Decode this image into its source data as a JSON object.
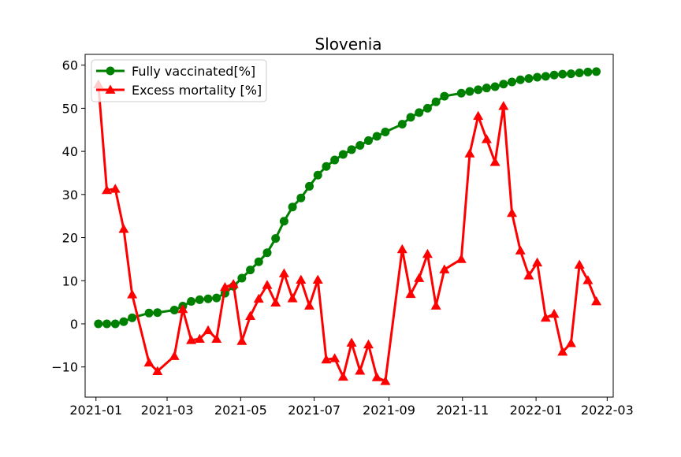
{
  "chart_data": {
    "type": "line",
    "title": "Slovenia",
    "xlabel": "",
    "ylabel": "",
    "x_axis": "date",
    "xlim": [
      "2020-12-23",
      "2022-03-06"
    ],
    "ylim": [
      -17,
      62.5
    ],
    "x_ticks": [
      "2021-01-01",
      "2021-03-01",
      "2021-05-01",
      "2021-07-01",
      "2021-09-01",
      "2021-11-01",
      "2022-01-01",
      "2022-03-01"
    ],
    "x_tick_labels": [
      "2021-01",
      "2021-03",
      "2021-05",
      "2021-07",
      "2021-09",
      "2021-11",
      "2022-01",
      "2022-03"
    ],
    "y_ticks": [
      -10,
      0,
      10,
      20,
      30,
      40,
      50,
      60
    ],
    "y_tick_labels": [
      "−10",
      "0",
      "10",
      "20",
      "30",
      "40",
      "50",
      "60"
    ],
    "grid": false,
    "legend_position": "upper-left",
    "series": [
      {
        "name": "Fully vaccinated[%]",
        "color": "#008000",
        "marker": "circle",
        "points": [
          [
            "2021-01-03",
            0.0
          ],
          [
            "2021-01-10",
            0.0
          ],
          [
            "2021-01-17",
            0.0
          ],
          [
            "2021-01-24",
            0.5
          ],
          [
            "2021-01-31",
            1.4
          ],
          [
            "2021-02-14",
            2.5
          ],
          [
            "2021-02-21",
            2.6
          ],
          [
            "2021-03-07",
            3.2
          ],
          [
            "2021-03-14",
            4.1
          ],
          [
            "2021-03-21",
            5.2
          ],
          [
            "2021-03-28",
            5.6
          ],
          [
            "2021-04-04",
            5.8
          ],
          [
            "2021-04-11",
            6.0
          ],
          [
            "2021-04-18",
            7.1
          ],
          [
            "2021-04-25",
            8.7
          ],
          [
            "2021-05-02",
            10.6
          ],
          [
            "2021-05-09",
            12.5
          ],
          [
            "2021-05-16",
            14.4
          ],
          [
            "2021-05-23",
            16.5
          ],
          [
            "2021-05-30",
            19.8
          ],
          [
            "2021-06-06",
            23.8
          ],
          [
            "2021-06-13",
            27.1
          ],
          [
            "2021-06-20",
            29.2
          ],
          [
            "2021-06-27",
            31.9
          ],
          [
            "2021-07-04",
            34.5
          ],
          [
            "2021-07-11",
            36.5
          ],
          [
            "2021-07-18",
            38.0
          ],
          [
            "2021-07-25",
            39.3
          ],
          [
            "2021-08-01",
            40.4
          ],
          [
            "2021-08-08",
            41.4
          ],
          [
            "2021-08-15",
            42.5
          ],
          [
            "2021-08-22",
            43.5
          ],
          [
            "2021-08-29",
            44.5
          ],
          [
            "2021-09-12",
            46.3
          ],
          [
            "2021-09-19",
            47.9
          ],
          [
            "2021-09-26",
            49.0
          ],
          [
            "2021-10-03",
            50.0
          ],
          [
            "2021-10-10",
            51.5
          ],
          [
            "2021-10-17",
            52.8
          ],
          [
            "2021-10-31",
            53.5
          ],
          [
            "2021-11-07",
            53.9
          ],
          [
            "2021-11-14",
            54.3
          ],
          [
            "2021-11-21",
            54.7
          ],
          [
            "2021-11-28",
            55.0
          ],
          [
            "2021-12-05",
            55.6
          ],
          [
            "2021-12-12",
            56.1
          ],
          [
            "2021-12-19",
            56.6
          ],
          [
            "2021-12-26",
            56.9
          ],
          [
            "2022-01-02",
            57.2
          ],
          [
            "2022-01-09",
            57.4
          ],
          [
            "2022-01-16",
            57.7
          ],
          [
            "2022-01-23",
            57.9
          ],
          [
            "2022-01-30",
            58.0
          ],
          [
            "2022-02-06",
            58.2
          ],
          [
            "2022-02-13",
            58.4
          ],
          [
            "2022-02-20",
            58.5
          ]
        ]
      },
      {
        "name": "Excess mortality [%]",
        "color": "#ff0000",
        "marker": "triangle",
        "points": [
          [
            "2021-01-03",
            55.5
          ],
          [
            "2021-01-10",
            31.0
          ],
          [
            "2021-01-17",
            31.3
          ],
          [
            "2021-01-24",
            22.0
          ],
          [
            "2021-01-31",
            6.8
          ],
          [
            "2021-02-14",
            -9.0
          ],
          [
            "2021-02-21",
            -11.0
          ],
          [
            "2021-03-07",
            -7.5
          ],
          [
            "2021-03-14",
            3.4
          ],
          [
            "2021-03-21",
            -3.8
          ],
          [
            "2021-03-28",
            -3.5
          ],
          [
            "2021-04-04",
            -1.5
          ],
          [
            "2021-04-11",
            -3.5
          ],
          [
            "2021-04-18",
            8.5
          ],
          [
            "2021-04-25",
            9.2
          ],
          [
            "2021-05-02",
            -4.0
          ],
          [
            "2021-05-09",
            1.8
          ],
          [
            "2021-05-16",
            5.8
          ],
          [
            "2021-05-23",
            9.0
          ],
          [
            "2021-05-30",
            4.9
          ],
          [
            "2021-06-06",
            11.7
          ],
          [
            "2021-06-13",
            5.9
          ],
          [
            "2021-06-20",
            10.2
          ],
          [
            "2021-06-27",
            4.2
          ],
          [
            "2021-07-04",
            10.2
          ],
          [
            "2021-07-11",
            -8.3
          ],
          [
            "2021-07-18",
            -8.0
          ],
          [
            "2021-07-25",
            -12.3
          ],
          [
            "2021-08-01",
            -4.4
          ],
          [
            "2021-08-08",
            -10.9
          ],
          [
            "2021-08-15",
            -4.8
          ],
          [
            "2021-08-22",
            -12.4
          ],
          [
            "2021-08-29",
            -13.3
          ],
          [
            "2021-09-12",
            17.3
          ],
          [
            "2021-09-19",
            6.9
          ],
          [
            "2021-09-26",
            10.6
          ],
          [
            "2021-10-03",
            16.2
          ],
          [
            "2021-10-10",
            4.2
          ],
          [
            "2021-10-17",
            12.6
          ],
          [
            "2021-10-31",
            15.0
          ],
          [
            "2021-11-07",
            39.5
          ],
          [
            "2021-11-14",
            48.2
          ],
          [
            "2021-11-21",
            42.8
          ],
          [
            "2021-11-28",
            37.5
          ],
          [
            "2021-12-05",
            50.5
          ],
          [
            "2021-12-12",
            25.7
          ],
          [
            "2021-12-19",
            17.0
          ],
          [
            "2021-12-26",
            11.2
          ],
          [
            "2022-01-02",
            14.2
          ],
          [
            "2022-01-09",
            1.4
          ],
          [
            "2022-01-16",
            2.3
          ],
          [
            "2022-01-23",
            -6.5
          ],
          [
            "2022-01-30",
            -4.5
          ],
          [
            "2022-02-06",
            13.7
          ],
          [
            "2022-02-13",
            10.1
          ],
          [
            "2022-02-20",
            5.2
          ]
        ]
      }
    ]
  }
}
